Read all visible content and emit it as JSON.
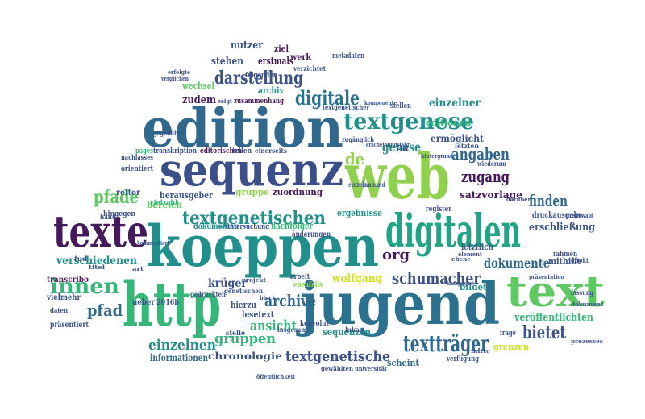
{
  "palette": {
    "dark_purple": "#46185c",
    "indigo": "#3b4f8a",
    "blue": "#31688e",
    "teal": "#21908d",
    "green": "#35b779",
    "light_green": "#8fd14f",
    "yellow": "#cde11d"
  },
  "words": [
    {
      "text": "edition",
      "color": "#31688e"
    },
    {
      "text": "sequenz",
      "color": "#3b4f8a"
    },
    {
      "text": "web",
      "color": "#8fd14f"
    },
    {
      "text": "koeppen",
      "color": "#21908d"
    },
    {
      "text": "texte",
      "color": "#46185c"
    },
    {
      "text": "digitalen",
      "color": "#21a386"
    },
    {
      "text": "http",
      "color": "#35b779"
    },
    {
      "text": "jugend",
      "color": "#2c728e"
    },
    {
      "text": "text",
      "color": "#5ec962"
    },
    {
      "text": "textgenese",
      "color": "#21908d"
    },
    {
      "text": "darstellung",
      "color": "#3b528b"
    },
    {
      "text": "digitale",
      "color": "#2c728e"
    },
    {
      "text": "textgenetischen",
      "color": "#21908d"
    },
    {
      "text": "textträger",
      "color": "#31688e"
    },
    {
      "text": "schumacher",
      "color": "#3b528b"
    },
    {
      "text": "angaben",
      "color": "#31688e"
    },
    {
      "text": "zugang",
      "color": "#46185c"
    },
    {
      "text": "finden",
      "color": "#31688e"
    },
    {
      "text": "bietet",
      "color": "#3b528b"
    },
    {
      "text": "pfade",
      "color": "#5ec962"
    },
    {
      "text": "innen",
      "color": "#35b779"
    },
    {
      "text": "verschiedenen",
      "color": "#21908d"
    },
    {
      "text": "einzelnen",
      "color": "#21908d"
    },
    {
      "text": "gruppen",
      "color": "#35b779"
    },
    {
      "text": "ansicht",
      "color": "#35b779"
    },
    {
      "text": "archive",
      "color": "#31688e"
    },
    {
      "text": "dokumente",
      "color": "#31688e"
    },
    {
      "text": "textgenetische",
      "color": "#3b528b"
    },
    {
      "text": "chronologie",
      "color": "#3b528b"
    },
    {
      "text": "informationen",
      "color": "#31688e"
    },
    {
      "text": "pfad",
      "color": "#31688e"
    },
    {
      "text": "genese",
      "color": "#21908d"
    },
    {
      "text": "einzelner",
      "color": "#21908d"
    },
    {
      "text": "de",
      "color": "#8fd14f"
    },
    {
      "text": "org",
      "color": "#46185c"
    },
    {
      "text": "wolfgang",
      "color": "#cde11d"
    },
    {
      "text": "krüger",
      "color": "#3b528b"
    },
    {
      "text": "sequenzen",
      "color": "#21908d"
    },
    {
      "text": "erschließung",
      "color": "#3b528b"
    },
    {
      "text": "veröffentlichten",
      "color": "#35b779"
    },
    {
      "text": "satzvorlage",
      "color": "#46185c"
    },
    {
      "text": "ermöglicht",
      "color": "#3b528b"
    },
    {
      "text": "editionen",
      "color": "#35b779"
    },
    {
      "text": "zudem",
      "color": "#46185c"
    },
    {
      "text": "nutzer",
      "color": "#3b528b"
    },
    {
      "text": "stehen",
      "color": "#3b528b"
    },
    {
      "text": "erstmals",
      "color": "#46185c"
    },
    {
      "text": "archiv",
      "color": "#21908d"
    },
    {
      "text": "herausgeber",
      "color": "#3b528b"
    },
    {
      "text": "bereich",
      "color": "#5ec962"
    },
    {
      "text": "zuordnung",
      "color": "#46185c"
    },
    {
      "text": "gruppe",
      "color": "#8fd14f"
    },
    {
      "text": "ergebnisse",
      "color": "#21908d"
    },
    {
      "text": "lesetext",
      "color": "#3b528b"
    },
    {
      "text": "scheint",
      "color": "#31688e"
    },
    {
      "text": "bildet",
      "color": "#21908d"
    },
    {
      "text": "grenzen",
      "color": "#cde11d"
    },
    {
      "text": "frage",
      "color": "#3b528b"
    },
    {
      "text": "druckausgabe",
      "color": "#3b528b"
    },
    {
      "text": "mithilfe",
      "color": "#3b528b"
    },
    {
      "text": "letztlich",
      "color": "#3b528b"
    },
    {
      "text": "hierzu",
      "color": "#3b528b"
    },
    {
      "text": "ueber",
      "color": "#3b528b"
    },
    {
      "text": "reiter",
      "color": "#3b528b"
    },
    {
      "text": "ziel",
      "color": "#46185c"
    },
    {
      "text": "werk",
      "color": "#46185c"
    },
    {
      "text": "transcribo",
      "color": "#46185c"
    },
    {
      "text": "vielmehr",
      "color": "#3b528b"
    },
    {
      "text": "präsentiert",
      "color": "#3b528b"
    },
    {
      "text": "hingegen",
      "color": "#3b528b"
    },
    {
      "text": "wechsel",
      "color": "#5ec962"
    },
    {
      "text": "dokumenten",
      "color": "#21908d"
    },
    {
      "text": "änderungen",
      "color": "#3b528b"
    },
    {
      "text": "untersuchung",
      "color": "#3b528b"
    },
    {
      "text": "nachfolger",
      "color": "#35b779"
    },
    {
      "text": "folgenden",
      "color": "#3b528b"
    },
    {
      "text": "zusammenhang",
      "color": "#46185c"
    },
    {
      "text": "transkription",
      "color": "#3b528b"
    },
    {
      "text": "editorischen",
      "color": "#46185c"
    },
    {
      "text": "teilen",
      "color": "#3b528b"
    },
    {
      "text": "einerseits",
      "color": "#3b528b"
    },
    {
      "text": "konvolut",
      "color": "#3b528b"
    },
    {
      "text": "insgesamt",
      "color": "#3b528b"
    },
    {
      "text": "erscheinungsjahr",
      "color": "#3b528b"
    },
    {
      "text": "rahmen",
      "color": "#3b528b"
    },
    {
      "text": "fassung",
      "color": "#3b528b"
    },
    {
      "text": "arbeit",
      "color": "#3b528b"
    },
    {
      "text": "ebenfalls",
      "color": "#8fd14f"
    },
    {
      "text": "register",
      "color": "#3b528b"
    },
    {
      "text": "gewählten",
      "color": "#3b528b"
    },
    {
      "text": "universität",
      "color": "#3b528b"
    },
    {
      "text": "verfügung",
      "color": "#3b528b"
    },
    {
      "text": "element",
      "color": "#3b528b"
    },
    {
      "text": "stellen",
      "color": "#3b528b"
    },
    {
      "text": "lukas",
      "color": "#3b528b"
    },
    {
      "text": "vielzahl",
      "color": "#35b779"
    },
    {
      "text": "gedruckten",
      "color": "#3b528b"
    },
    {
      "text": "genetischen",
      "color": "#3b528b"
    },
    {
      "text": "kommentiert",
      "color": "#3b528b"
    },
    {
      "text": "metadaten",
      "color": "#3b528b"
    },
    {
      "text": "verzichtet",
      "color": "#3b528b"
    },
    {
      "text": "textgenetischer",
      "color": "#3b528b"
    },
    {
      "text": "orientiert",
      "color": "#3b528b"
    },
    {
      "text": "nachlasses",
      "color": "#3b528b"
    },
    {
      "text": "gegenüber",
      "color": "#3b528b"
    },
    {
      "text": "anhand",
      "color": "#3b528b"
    },
    {
      "text": "einzelne",
      "color": "#3b528b"
    },
    {
      "text": "letzten",
      "color": "#3b528b"
    },
    {
      "text": "zugänglich",
      "color": "#3b528b"
    },
    {
      "text": "wiederum",
      "color": "#3b528b"
    },
    {
      "text": "pages",
      "color": "#35b779"
    },
    {
      "text": "verglichen",
      "color": "#3b528b"
    },
    {
      "text": "erfolgte",
      "color": "#3b528b"
    },
    {
      "text": "darüber",
      "color": "#3b528b"
    },
    {
      "text": "direkt",
      "color": "#3b528b"
    },
    {
      "text": "stelle",
      "color": "#3b528b"
    },
    {
      "text": "hand",
      "color": "#3b528b"
    },
    {
      "text": "fud",
      "color": "#3b528b"
    },
    {
      "text": "daten",
      "color": "#3b528b"
    },
    {
      "text": "zeigt",
      "color": "#3b528b"
    },
    {
      "text": "block",
      "color": "#3b528b"
    },
    {
      "text": "2016b",
      "color": "#3b528b"
    },
    {
      "text": "titel",
      "color": "#3b528b"
    },
    {
      "text": "art",
      "color": "#3b528b"
    },
    {
      "text": "ebene",
      "color": "#3b528b"
    },
    {
      "text": "kampagne",
      "color": "#3b528b"
    },
    {
      "text": "greifswald",
      "color": "#3b528b"
    },
    {
      "text": "öffentlichkeit",
      "color": "#3b528b"
    },
    {
      "text": "komponente",
      "color": "#3b528b"
    },
    {
      "text": "präsentation",
      "color": "#3b528b"
    },
    {
      "text": "projekt",
      "color": "#3b528b"
    },
    {
      "text": "hintergrund",
      "color": "#3b528b"
    },
    {
      "text": "ebd",
      "color": "#3b528b"
    },
    {
      "text": "prozesses",
      "color": "#3b528b"
    },
    {
      "text": "mitte",
      "color": "#3b528b"
    },
    {
      "text": "dokument",
      "color": "#3b528b"
    }
  ]
}
